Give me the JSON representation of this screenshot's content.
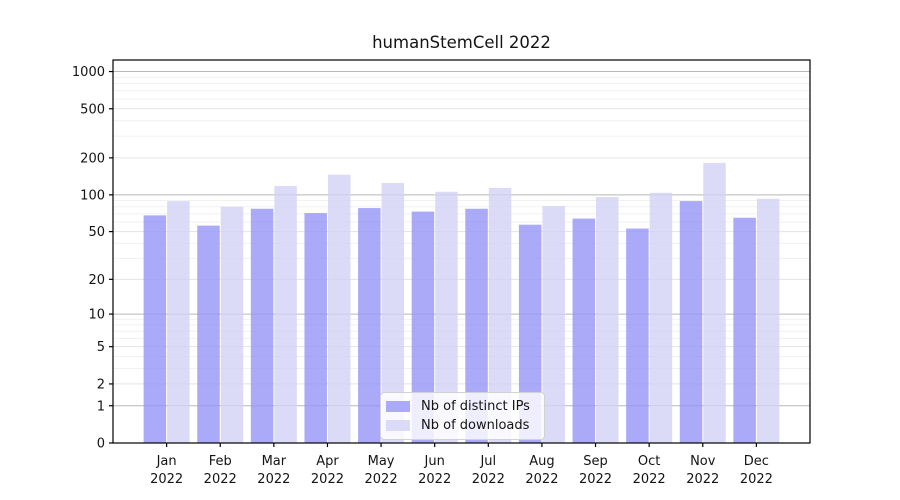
{
  "title": "humanStemCell 2022",
  "chart_data": {
    "type": "bar",
    "title": "humanStemCell 2022",
    "categories": [
      "Jan",
      "Feb",
      "Mar",
      "Apr",
      "May",
      "Jun",
      "Jul",
      "Aug",
      "Sep",
      "Oct",
      "Nov",
      "Dec"
    ],
    "year_label": "2022",
    "series": [
      {
        "name": "Nb of distinct IPs",
        "color": "#aaaaf8",
        "values": [
          68,
          56,
          77,
          71,
          78,
          73,
          77,
          57,
          64,
          53,
          89,
          65
        ]
      },
      {
        "name": "Nb of downloads",
        "color": "#dbdbf8",
        "values": [
          89,
          80,
          118,
          146,
          125,
          106,
          114,
          81,
          96,
          104,
          182,
          93
        ]
      }
    ],
    "yscale": "log10(1+x)",
    "yticks": [
      1000,
      500,
      200,
      100,
      50,
      20,
      10,
      5,
      2,
      1,
      0
    ],
    "ylim": [
      0,
      1240
    ],
    "xlabel": "",
    "ylabel": "",
    "grid": true,
    "legend_position": "lower center"
  }
}
